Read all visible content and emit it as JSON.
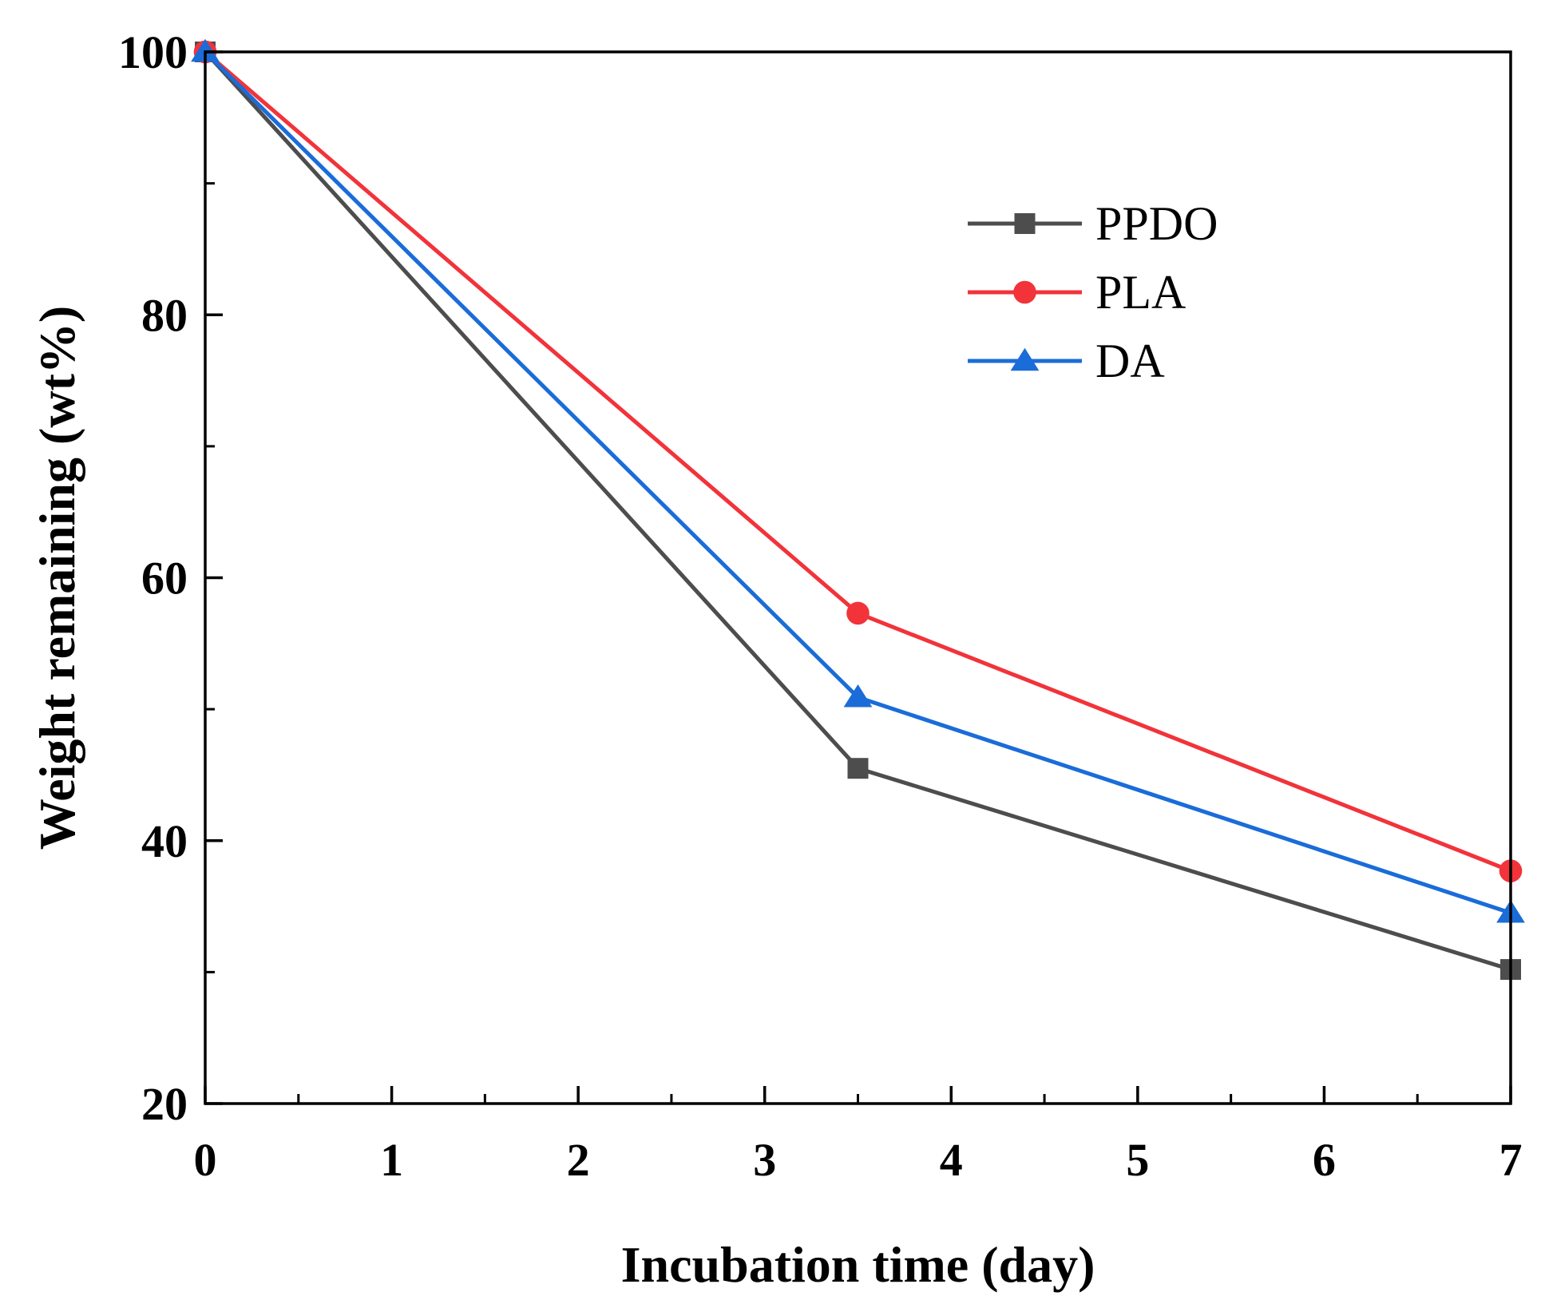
{
  "chart_data": {
    "type": "line",
    "title": "",
    "xlabel": "Incubation time (day)",
    "ylabel": "Weight remaining (wt%)",
    "xlim": [
      0,
      7
    ],
    "ylim": [
      20,
      100
    ],
    "xticks": [
      0,
      1,
      2,
      3,
      4,
      5,
      6,
      7
    ],
    "xtick_labels": [
      "0",
      "1",
      "2",
      "3",
      "4",
      "5",
      "6",
      "7"
    ],
    "xminor_ticks": [
      0.5,
      1.5,
      2.5,
      3.5,
      4.5,
      5.5,
      6.5
    ],
    "yticks": [
      20,
      40,
      60,
      80,
      100
    ],
    "ytick_labels": [
      "20",
      "40",
      "60",
      "80",
      "100"
    ],
    "yminor_ticks": [
      30,
      50,
      70,
      90
    ],
    "grid": false,
    "legend_position": "top-right",
    "series": [
      {
        "name": "PPDO",
        "color": "#4d4d4d",
        "marker": "square",
        "x": [
          0,
          3.5,
          7
        ],
        "values": [
          100,
          45.5,
          30.2
        ]
      },
      {
        "name": "PLA",
        "color": "#f2333a",
        "marker": "circle",
        "x": [
          0,
          3.5,
          7
        ],
        "values": [
          100,
          57.3,
          37.7
        ]
      },
      {
        "name": "DA",
        "color": "#1a6cd9",
        "marker": "triangle",
        "x": [
          0,
          3.5,
          7
        ],
        "values": [
          100,
          50.9,
          34.5
        ]
      }
    ]
  }
}
